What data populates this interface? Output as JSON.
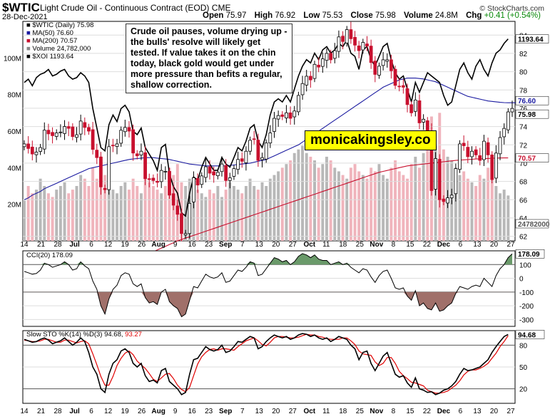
{
  "header": {
    "symbol": "$WTIC",
    "name": "Light Crude Oil - Continuous Contract (EOD)",
    "exchange": "CME",
    "date": "28-Dec-2021",
    "credit": "© StockCharts.com",
    "open_label": "Open",
    "open": "75.97",
    "high_label": "High",
    "high": "76.92",
    "low_label": "Low",
    "low": "75.53",
    "close_label": "Close",
    "close": "75.98",
    "volume_label": "Volume",
    "volume": "24.8M",
    "chg_label": "Chg",
    "chg": "+0.41 (+0.54%)"
  },
  "annotation": "Crude oil pauses, volume drying up - the bulls' resolve will likely get tested. If value takes it on the chin today, black gold would get under more pressure than befits a regular, shallow correction.",
  "watermark": "monicakingsley.co",
  "legend_main": [
    {
      "text": "$WTIC (Daily) 75.98",
      "color": "#000000"
    },
    {
      "text": "MA(50) 76.60",
      "color": "#1a1aa0"
    },
    {
      "text": "MA(200) 70.57",
      "color": "#c8102e"
    },
    {
      "text": "Volume 24,782,000",
      "color": "#888888"
    },
    {
      "text": "$XOI 1193.64",
      "color": "#000000"
    }
  ],
  "legend_cci": "CCI(20) 178.09",
  "legend_sto_prefix": "Slow STO %K(14) %D(3) 94.68,",
  "legend_sto_d": "93.27",
  "colors": {
    "up": "#000000",
    "down": "#c8102e",
    "ma50": "#1a1aa0",
    "ma200": "#c8102e",
    "vol_up": "#b8b8b8",
    "vol_down": "#f0b4bc",
    "cci_pos": "#6a9a6a",
    "cci_neg": "#a0706a",
    "sto_d": "#e00000"
  },
  "x_labels": [
    "14",
    "21",
    "28",
    "Jul",
    "6",
    "12",
    "19",
    "26",
    "Aug",
    "9",
    "16",
    "23",
    "Sep",
    "7",
    "13",
    "20",
    "27",
    "Oct",
    "11",
    "18",
    "25",
    "Nov",
    "8",
    "15",
    "22",
    "Dec",
    "6",
    "13",
    "20",
    "27"
  ],
  "chart_data": [
    {
      "type": "candlestick",
      "title": "$WTIC Light Crude Oil - Continuous Contract (EOD)",
      "y_axis": [
        62,
        64,
        66,
        68,
        70,
        72,
        74,
        76,
        78,
        80,
        82,
        84
      ],
      "ylim": [
        61.5,
        85.5
      ],
      "volume_axis": [
        "20M",
        "40M",
        "60M",
        "80M",
        "100M"
      ],
      "last_value_tags": {
        "price": "75.98",
        "ma50": "76.60",
        "ma200": "70.57",
        "xoi": "1193.64",
        "volume": "24782000"
      },
      "ohlc_dates_approx": "2021-06-14 to 2021-12-28 (daily)",
      "closes": [
        72.1,
        71.6,
        71.0,
        71.2,
        71.7,
        73.6,
        73.2,
        73.0,
        73.3,
        73.4,
        74.0,
        73.8,
        72.9,
        73.1,
        74.6,
        73.9,
        73.5,
        71.5,
        70.6,
        67.4,
        67.1,
        71.8,
        71.9,
        72.1,
        73.6,
        73.9,
        73.5,
        71.1,
        70.8,
        71.3,
        68.3,
        68.2,
        68.1,
        67.9,
        69.2,
        69.1,
        66.5,
        65.4,
        64.4,
        62.3,
        62.3,
        65.6,
        68.4,
        67.6,
        68.6,
        69.6,
        68.9,
        68.7,
        69.0,
        69.9,
        68.1,
        68.4,
        69.4,
        70.4,
        70.2,
        71.3,
        72.5,
        72.6,
        70.3,
        70.6,
        72.2,
        73.3,
        74.9,
        75.2,
        75.1,
        75.5,
        74.9,
        75.7,
        77.4,
        78.7,
        79.5,
        79.1,
        80.8,
        80.5,
        81.4,
        82.0,
        81.3,
        82.3,
        83.8,
        83.3,
        84.6,
        83.6,
        82.9,
        82.3,
        83.2,
        82.8,
        81.0,
        79.7,
        80.6,
        81.3,
        81.3,
        80.1,
        78.5,
        78.4,
        78.3,
        76.4,
        75.5,
        76.9,
        74.4,
        74.8,
        73.5,
        67.0,
        70.5,
        66.0,
        65.8,
        66.2,
        66.5,
        69.4,
        72.1,
        71.9,
        70.7,
        71.3,
        70.9,
        70.3,
        72.4,
        70.9,
        68.2,
        71.1,
        72.8,
        73.8,
        75.6,
        75.98
      ],
      "ma50": [
        66.0,
        66.2,
        66.5,
        66.7,
        66.9,
        67.2,
        67.4,
        67.6,
        67.8,
        68.0,
        68.2,
        68.4,
        68.6,
        68.8,
        69.0,
        69.2,
        69.4,
        69.5,
        69.6,
        69.7,
        69.8,
        69.9,
        70.0,
        70.1,
        70.2,
        70.3,
        70.4,
        70.45,
        70.5,
        70.55,
        70.6,
        70.6,
        70.6,
        70.55,
        70.5,
        70.45,
        70.4,
        70.3,
        70.2,
        70.1,
        70.0,
        69.9,
        69.85,
        69.8,
        69.75,
        69.7,
        69.7,
        69.7,
        69.7,
        69.7,
        69.72,
        69.75,
        69.8,
        69.85,
        69.9,
        69.95,
        70.0,
        70.1,
        70.2,
        70.3,
        70.4,
        70.6,
        70.8,
        71.0,
        71.2,
        71.4,
        71.6,
        71.8,
        72.0,
        72.3,
        72.6,
        72.9,
        73.2,
        73.5,
        73.8,
        74.1,
        74.4,
        74.7,
        75.0,
        75.3,
        75.6,
        75.9,
        76.2,
        76.5,
        76.8,
        77.1,
        77.4,
        77.7,
        78.0,
        78.3,
        78.5,
        78.7,
        78.9,
        79.1,
        79.2,
        79.3,
        79.3,
        79.3,
        79.25,
        79.2,
        79.1,
        79.0,
        78.9,
        78.7,
        78.5,
        78.3,
        78.1,
        77.9,
        77.7,
        77.5,
        77.3,
        77.2,
        77.1,
        77.0,
        76.9,
        76.8,
        76.75,
        76.7,
        76.65,
        76.62,
        76.6,
        76.6,
        76.6
      ],
      "ma200": [
        53.9,
        54.1,
        54.3,
        54.5,
        54.7,
        54.9,
        55.1,
        55.3,
        55.5,
        55.7,
        55.9,
        56.1,
        56.3,
        56.5,
        56.7,
        56.9,
        57.1,
        57.3,
        57.5,
        57.7,
        57.9,
        58.1,
        58.3,
        58.5,
        58.7,
        58.9,
        59.1,
        59.3,
        59.5,
        59.7,
        59.9,
        60.1,
        60.3,
        60.5,
        60.7,
        60.9,
        61.1,
        61.3,
        61.5,
        61.65,
        61.8,
        61.95,
        62.1,
        62.25,
        62.4,
        62.55,
        62.7,
        62.85,
        63.0,
        63.15,
        63.3,
        63.45,
        63.6,
        63.75,
        63.9,
        64.05,
        64.2,
        64.35,
        64.5,
        64.65,
        64.8,
        64.95,
        65.1,
        65.25,
        65.4,
        65.55,
        65.7,
        65.85,
        66.0,
        66.15,
        66.3,
        66.45,
        66.6,
        66.75,
        66.9,
        67.05,
        67.2,
        67.35,
        67.5,
        67.65,
        67.8,
        67.95,
        68.1,
        68.25,
        68.4,
        68.55,
        68.7,
        68.85,
        69.0,
        69.1,
        69.2,
        69.3,
        69.4,
        69.5,
        69.6,
        69.7,
        69.75,
        69.8,
        69.85,
        69.9,
        69.95,
        70.0,
        70.05,
        70.1,
        70.15,
        70.2,
        70.25,
        70.3,
        70.33,
        70.36,
        70.39,
        70.42,
        70.45,
        70.47,
        70.49,
        70.51,
        70.53,
        70.55,
        70.56,
        70.57,
        70.57
      ],
      "volume_millions": [
        22,
        30,
        26,
        28,
        34,
        30,
        26,
        24,
        28,
        30,
        32,
        26,
        28,
        30,
        36,
        34,
        30,
        40,
        34,
        44,
        36,
        30,
        28,
        26,
        30,
        32,
        28,
        34,
        30,
        26,
        38,
        32,
        30,
        28,
        26,
        30,
        40,
        36,
        42,
        32,
        30,
        34,
        30,
        28,
        26,
        24,
        28,
        26,
        30,
        24,
        28,
        32,
        30,
        28,
        26,
        30,
        34,
        30,
        28,
        32,
        30,
        34,
        36,
        38,
        40,
        42,
        44,
        48,
        50,
        52,
        48,
        46,
        44,
        40,
        42,
        46,
        44,
        40,
        38,
        36,
        34,
        40,
        42,
        38,
        36,
        34,
        40,
        38,
        42,
        36,
        34,
        40,
        44,
        38,
        36,
        34,
        42,
        46,
        40,
        48,
        58,
        68,
        52,
        70,
        50,
        46,
        44,
        40,
        36,
        38,
        34,
        32,
        30,
        36,
        34,
        40,
        46,
        30,
        26,
        28,
        24.8
      ],
      "xoi": [
        1060,
        1070,
        1050,
        1075,
        1085,
        1090,
        1100,
        1080,
        1085,
        1095,
        1100,
        1080,
        1070,
        1075,
        1090,
        1080,
        1060,
        980,
        920,
        860,
        850,
        930,
        960,
        940,
        980,
        990,
        970,
        910,
        900,
        920,
        860,
        840,
        820,
        790,
        860,
        870,
        780,
        740,
        720,
        660,
        650,
        720,
        770,
        760,
        800,
        830,
        810,
        790,
        790,
        830,
        810,
        800,
        830,
        860,
        850,
        880,
        920,
        930,
        880,
        860,
        900,
        960,
        1000,
        1010,
        1000,
        1020,
        1000,
        1040,
        1080,
        1110,
        1130,
        1120,
        1150,
        1130,
        1160,
        1170,
        1150,
        1160,
        1180,
        1170,
        1190,
        1150,
        1140,
        1100,
        1160,
        1170,
        1130,
        1110,
        1140,
        1170,
        1180,
        1130,
        1090,
        1070,
        1080,
        1040,
        1000,
        1060,
        1030,
        1060,
        1090,
        1080,
        1070,
        1060,
        1020,
        990,
        1000,
        1050,
        1100,
        1120,
        1090,
        1070,
        1110,
        1130,
        1100,
        1080,
        1120,
        1150,
        1160,
        1180,
        1193.64
      ]
    },
    {
      "type": "line",
      "title": "CCI(20)",
      "value": 178.09,
      "y_axis": [
        -300,
        -200,
        -100,
        0,
        100
      ],
      "ylim": [
        -350,
        200
      ],
      "values": [
        50,
        40,
        30,
        35,
        60,
        110,
        100,
        80,
        90,
        100,
        120,
        100,
        60,
        70,
        120,
        90,
        70,
        -20,
        -80,
        -200,
        -260,
        -150,
        -80,
        -50,
        20,
        40,
        30,
        -40,
        -60,
        -40,
        -140,
        -180,
        -170,
        -190,
        -100,
        -80,
        -170,
        -200,
        -220,
        -280,
        -260,
        -160,
        -60,
        -70,
        -20,
        30,
        10,
        0,
        10,
        40,
        -30,
        -20,
        20,
        60,
        50,
        80,
        120,
        110,
        20,
        30,
        70,
        110,
        150,
        140,
        120,
        130,
        100,
        120,
        160,
        180,
        170,
        150,
        170,
        140,
        130,
        130,
        100,
        110,
        120,
        100,
        110,
        80,
        60,
        40,
        70,
        60,
        10,
        -30,
        20,
        50,
        60,
        0,
        -70,
        -80,
        -70,
        -130,
        -160,
        -90,
        -200,
        -180,
        -220,
        -230,
        -180,
        -240,
        -230,
        -200,
        -180,
        -110,
        -60,
        -70,
        -80,
        -60,
        -50,
        -60,
        0,
        -30,
        -60,
        20,
        70,
        100,
        150,
        178.09
      ]
    },
    {
      "type": "line",
      "title": "Slow STO %K(14) %D(3)",
      "y_axis": [
        20,
        50,
        80
      ],
      "ylim": [
        0,
        100
      ],
      "series": [
        {
          "name": "%K(14)",
          "value": 94.68,
          "values": [
            88,
            86,
            84,
            85,
            88,
            90,
            87,
            82,
            84,
            86,
            90,
            85,
            80,
            84,
            90,
            85,
            70,
            50,
            40,
            20,
            15,
            40,
            55,
            60,
            72,
            75,
            70,
            55,
            50,
            55,
            38,
            30,
            32,
            28,
            45,
            48,
            30,
            25,
            20,
            12,
            15,
            40,
            60,
            62,
            70,
            78,
            74,
            72,
            74,
            80,
            70,
            72,
            78,
            85,
            84,
            88,
            92,
            90,
            75,
            78,
            85,
            90,
            94,
            92,
            90,
            92,
            88,
            90,
            94,
            96,
            95,
            92,
            94,
            90,
            88,
            90,
            85,
            88,
            92,
            90,
            88,
            80,
            75,
            60,
            70,
            72,
            55,
            45,
            55,
            65,
            70,
            55,
            40,
            36,
            38,
            28,
            22,
            35,
            20,
            18,
            15,
            16,
            12,
            14,
            18,
            20,
            24,
            30,
            40,
            48,
            45,
            46,
            48,
            50,
            55,
            60,
            70,
            78,
            85,
            92,
            94.68
          ]
        },
        {
          "name": "%D(3)",
          "value": 93.27,
          "values": [
            87,
            86,
            85,
            85,
            86,
            88,
            88,
            86,
            84,
            84,
            87,
            87,
            85,
            83,
            85,
            86,
            82,
            68,
            53,
            37,
            25,
            25,
            37,
            52,
            62,
            69,
            72,
            67,
            58,
            53,
            48,
            41,
            33,
            30,
            35,
            40,
            41,
            34,
            25,
            19,
            16,
            22,
            38,
            54,
            64,
            70,
            74,
            75,
            73,
            75,
            75,
            74,
            73,
            78,
            82,
            86,
            88,
            90,
            86,
            81,
            79,
            84,
            90,
            92,
            92,
            91,
            90,
            90,
            91,
            93,
            95,
            94,
            94,
            92,
            91,
            89,
            88,
            88,
            88,
            90,
            90,
            86,
            81,
            72,
            68,
            67,
            66,
            57,
            52,
            55,
            63,
            63,
            55,
            44,
            38,
            34,
            29,
            28,
            26,
            24,
            18,
            16,
            14,
            14,
            15,
            17,
            21,
            25,
            31,
            39,
            44,
            46,
            46,
            48,
            51,
            55,
            62,
            69,
            78,
            85,
            93.27
          ]
        }
      ]
    }
  ]
}
